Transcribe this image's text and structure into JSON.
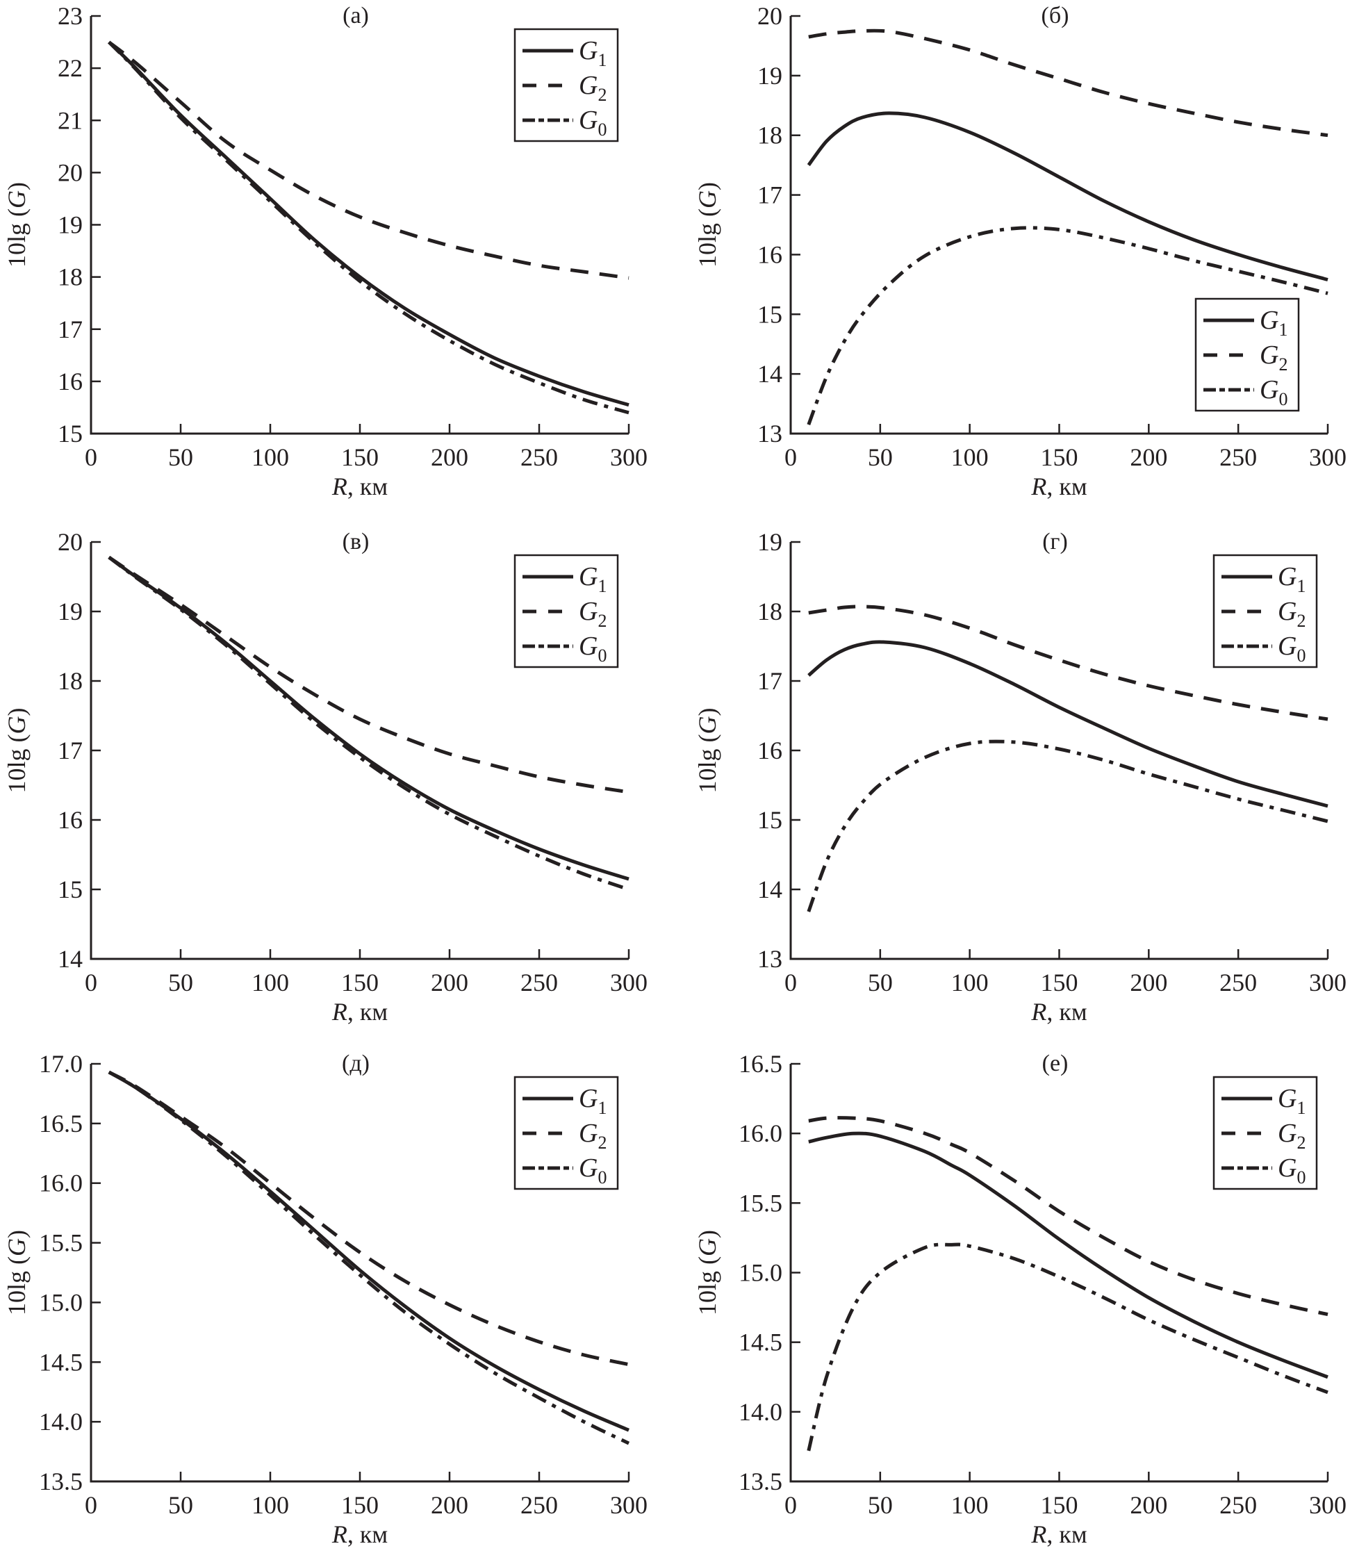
{
  "chart_data": [
    {
      "type": "line",
      "panel": "a",
      "title": "(а)",
      "xlabel": "R, км",
      "ylabel": "10lg (G)",
      "xlim": [
        0,
        300
      ],
      "ylim": [
        15,
        23
      ],
      "xticks": [
        "0",
        "50",
        "100",
        "150",
        "200",
        "250",
        "300"
      ],
      "yticks": [
        "15",
        "16",
        "17",
        "18",
        "19",
        "20",
        "21",
        "22",
        "23"
      ],
      "legend_position": "top-right",
      "x": [
        10,
        25,
        50,
        75,
        100,
        125,
        150,
        175,
        200,
        225,
        250,
        275,
        300
      ],
      "series": [
        {
          "name": "G1",
          "style": "solid",
          "values": [
            22.5,
            22.0,
            21.1,
            20.3,
            19.5,
            18.7,
            18.0,
            17.4,
            16.9,
            16.45,
            16.1,
            15.8,
            15.55
          ]
        },
        {
          "name": "G2",
          "style": "dashed",
          "values": [
            22.5,
            22.1,
            21.35,
            20.6,
            20.05,
            19.55,
            19.15,
            18.85,
            18.6,
            18.4,
            18.22,
            18.1,
            17.98
          ]
        },
        {
          "name": "G0",
          "style": "dashdot",
          "values": [
            22.5,
            21.98,
            21.05,
            20.25,
            19.45,
            18.65,
            17.92,
            17.3,
            16.78,
            16.33,
            15.97,
            15.65,
            15.4
          ]
        }
      ]
    },
    {
      "type": "line",
      "panel": "b",
      "title": "(б)",
      "xlabel": "R, км",
      "ylabel": "10lg (G)",
      "xlim": [
        0,
        300
      ],
      "ylim": [
        13,
        20
      ],
      "xticks": [
        "0",
        "50",
        "100",
        "150",
        "200",
        "250",
        "300"
      ],
      "yticks": [
        "13",
        "14",
        "15",
        "16",
        "17",
        "18",
        "19",
        "20"
      ],
      "legend_position": "bottom-right",
      "x": [
        10,
        20,
        30,
        40,
        55,
        75,
        100,
        125,
        150,
        175,
        200,
        225,
        250,
        275,
        300
      ],
      "series": [
        {
          "name": "G1",
          "style": "solid",
          "values": [
            17.5,
            17.9,
            18.15,
            18.3,
            18.37,
            18.3,
            18.05,
            17.7,
            17.3,
            16.9,
            16.55,
            16.25,
            16.0,
            15.78,
            15.58
          ]
        },
        {
          "name": "G2",
          "style": "dashed",
          "values": [
            19.65,
            19.7,
            19.73,
            19.75,
            19.74,
            19.62,
            19.43,
            19.18,
            18.95,
            18.72,
            18.53,
            18.37,
            18.22,
            18.1,
            18.0
          ]
        },
        {
          "name": "G0",
          "style": "dashdot",
          "values": [
            13.15,
            13.95,
            14.55,
            15.0,
            15.5,
            15.98,
            16.3,
            16.44,
            16.42,
            16.28,
            16.1,
            15.9,
            15.72,
            15.54,
            15.35
          ]
        }
      ]
    },
    {
      "type": "line",
      "panel": "v",
      "title": "(в)",
      "xlabel": "R, км",
      "ylabel": "10lg (G)",
      "xlim": [
        0,
        300
      ],
      "ylim": [
        14,
        20
      ],
      "xticks": [
        "0",
        "50",
        "100",
        "150",
        "200",
        "250",
        "300"
      ],
      "yticks": [
        "14",
        "15",
        "16",
        "17",
        "18",
        "19",
        "20"
      ],
      "legend_position": "top-right",
      "x": [
        10,
        25,
        50,
        75,
        100,
        125,
        150,
        175,
        200,
        225,
        250,
        275,
        300
      ],
      "series": [
        {
          "name": "G1",
          "style": "solid",
          "values": [
            19.78,
            19.5,
            19.05,
            18.55,
            18.0,
            17.45,
            16.95,
            16.52,
            16.15,
            15.85,
            15.58,
            15.35,
            15.15
          ]
        },
        {
          "name": "G2",
          "style": "dashed",
          "values": [
            19.78,
            19.52,
            19.1,
            18.65,
            18.2,
            17.8,
            17.45,
            17.18,
            16.95,
            16.78,
            16.62,
            16.5,
            16.4
          ]
        },
        {
          "name": "G0",
          "style": "dashdot",
          "values": [
            19.78,
            19.49,
            19.03,
            18.52,
            17.96,
            17.4,
            16.9,
            16.46,
            16.08,
            15.77,
            15.48,
            15.22,
            15.0
          ]
        }
      ]
    },
    {
      "type": "line",
      "panel": "g",
      "title": "(г)",
      "xlabel": "R, км",
      "ylabel": "10lg (G)",
      "xlim": [
        0,
        300
      ],
      "ylim": [
        13,
        19
      ],
      "xticks": [
        "0",
        "50",
        "100",
        "150",
        "200",
        "250",
        "300"
      ],
      "yticks": [
        "13",
        "14",
        "15",
        "16",
        "17",
        "18",
        "19"
      ],
      "legend_position": "top-right",
      "x": [
        10,
        20,
        30,
        40,
        52,
        75,
        100,
        125,
        150,
        175,
        200,
        225,
        250,
        275,
        300
      ],
      "series": [
        {
          "name": "G1",
          "style": "solid",
          "values": [
            17.08,
            17.3,
            17.45,
            17.53,
            17.56,
            17.48,
            17.25,
            16.95,
            16.62,
            16.32,
            16.03,
            15.78,
            15.55,
            15.37,
            15.2
          ]
        },
        {
          "name": "G2",
          "style": "dashed",
          "values": [
            17.98,
            18.02,
            18.06,
            18.07,
            18.05,
            17.95,
            17.76,
            17.52,
            17.3,
            17.1,
            16.93,
            16.79,
            16.66,
            16.55,
            16.45
          ]
        },
        {
          "name": "G0",
          "style": "dashdot",
          "values": [
            13.68,
            14.4,
            14.9,
            15.25,
            15.55,
            15.9,
            16.1,
            16.12,
            16.02,
            15.86,
            15.66,
            15.48,
            15.3,
            15.14,
            14.98
          ]
        }
      ]
    },
    {
      "type": "line",
      "panel": "d",
      "title": "(д)",
      "xlabel": "R, км",
      "ylabel": "10lg (G)",
      "xlim": [
        0,
        300
      ],
      "ylim": [
        13.5,
        17.0
      ],
      "xticks": [
        "0",
        "50",
        "100",
        "150",
        "200",
        "250",
        "300"
      ],
      "yticks": [
        "13.5",
        "14.0",
        "14.5",
        "15.0",
        "15.5",
        "16.0",
        "16.5",
        "17.0"
      ],
      "legend_position": "top-right",
      "x": [
        10,
        25,
        50,
        75,
        100,
        125,
        150,
        175,
        200,
        225,
        250,
        275,
        300
      ],
      "series": [
        {
          "name": "G1",
          "style": "solid",
          "values": [
            16.93,
            16.8,
            16.54,
            16.25,
            15.93,
            15.6,
            15.27,
            14.97,
            14.7,
            14.47,
            14.27,
            14.09,
            13.93
          ]
        },
        {
          "name": "G2",
          "style": "dashed",
          "values": [
            16.93,
            16.81,
            16.56,
            16.3,
            16.0,
            15.7,
            15.42,
            15.18,
            14.98,
            14.81,
            14.67,
            14.56,
            14.48
          ]
        },
        {
          "name": "G0",
          "style": "dashdot",
          "values": [
            16.93,
            16.8,
            16.53,
            16.23,
            15.9,
            15.56,
            15.23,
            14.92,
            14.65,
            14.41,
            14.2,
            14.0,
            13.82
          ]
        }
      ]
    },
    {
      "type": "line",
      "panel": "e",
      "title": "(е)",
      "xlabel": "R, км",
      "ylabel": "10lg (G)",
      "xlim": [
        0,
        300
      ],
      "ylim": [
        13.5,
        16.5
      ],
      "xticks": [
        "0",
        "50",
        "100",
        "150",
        "200",
        "250",
        "300"
      ],
      "yticks": [
        "13.5",
        "14.0",
        "14.5",
        "15.0",
        "15.5",
        "16.0",
        "16.5"
      ],
      "legend_position": "top-right",
      "x": [
        10,
        20,
        35,
        50,
        75,
        90,
        100,
        125,
        150,
        175,
        200,
        225,
        250,
        275,
        300
      ],
      "series": [
        {
          "name": "G1",
          "style": "solid",
          "values": [
            15.94,
            15.97,
            16.0,
            15.98,
            15.87,
            15.77,
            15.7,
            15.48,
            15.24,
            15.02,
            14.82,
            14.65,
            14.5,
            14.37,
            14.25
          ]
        },
        {
          "name": "G2",
          "style": "dashed",
          "values": [
            16.09,
            16.11,
            16.11,
            16.09,
            16.0,
            15.92,
            15.86,
            15.66,
            15.44,
            15.25,
            15.08,
            14.95,
            14.85,
            14.77,
            14.7
          ]
        },
        {
          "name": "G0",
          "style": "dashdot",
          "values": [
            13.72,
            14.25,
            14.75,
            15.0,
            15.18,
            15.2,
            15.19,
            15.1,
            14.97,
            14.82,
            14.66,
            14.52,
            14.39,
            14.26,
            14.14
          ]
        }
      ]
    }
  ],
  "legend": {
    "items": [
      {
        "base": "G",
        "sub": "1",
        "style": "solid"
      },
      {
        "base": "G",
        "sub": "2",
        "style": "dashed"
      },
      {
        "base": "G",
        "sub": "0",
        "style": "dashdot"
      }
    ]
  },
  "colors": {
    "ink": "#231f20",
    "background": "#ffffff"
  }
}
